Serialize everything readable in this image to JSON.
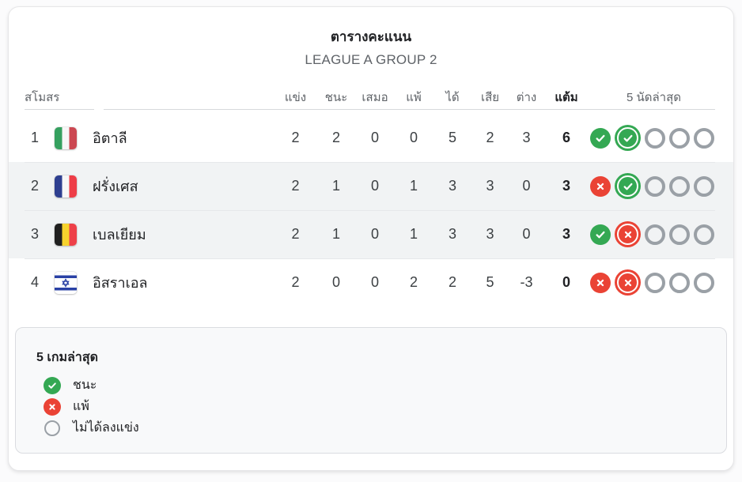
{
  "card": {
    "title": "ตารางคะแนน",
    "subtitle": "LEAGUE A GROUP 2"
  },
  "table": {
    "columns": {
      "club": "สโมสร",
      "played": "แข่ง",
      "won": "ชนะ",
      "drawn": "เสมอ",
      "lost": "แพ้",
      "goals_for": "ได้",
      "goals_against": "เสีย",
      "goal_diff": "ต่าง",
      "points": "แต้ม",
      "form": "5 นัดล่าสุด"
    },
    "rows": [
      {
        "rank": "1",
        "club": "อิตาลี",
        "flag": "italy",
        "played": "2",
        "won": "2",
        "drawn": "0",
        "lost": "0",
        "gf": "5",
        "ga": "2",
        "gd": "3",
        "pts": "6",
        "highlighted": false,
        "form": [
          "win",
          "win-latest",
          "none",
          "none",
          "none"
        ]
      },
      {
        "rank": "2",
        "club": "ฝรั่งเศส",
        "flag": "france",
        "played": "2",
        "won": "1",
        "drawn": "0",
        "lost": "1",
        "gf": "3",
        "ga": "3",
        "gd": "0",
        "pts": "3",
        "highlighted": true,
        "form": [
          "loss",
          "win-latest",
          "none",
          "none",
          "none"
        ]
      },
      {
        "rank": "3",
        "club": "เบลเยียม",
        "flag": "belgium",
        "played": "2",
        "won": "1",
        "drawn": "0",
        "lost": "1",
        "gf": "3",
        "ga": "3",
        "gd": "0",
        "pts": "3",
        "highlighted": true,
        "form": [
          "win",
          "loss-latest",
          "none",
          "none",
          "none"
        ]
      },
      {
        "rank": "4",
        "club": "อิสราเอล",
        "flag": "israel",
        "played": "2",
        "won": "0",
        "drawn": "0",
        "lost": "2",
        "gf": "2",
        "ga": "5",
        "gd": "-3",
        "pts": "0",
        "highlighted": false,
        "form": [
          "loss",
          "loss-latest",
          "none",
          "none",
          "none"
        ]
      }
    ]
  },
  "legend": {
    "title": "5 เกมล่าสุด",
    "items": [
      {
        "type": "win",
        "label": "ชนะ"
      },
      {
        "type": "loss",
        "label": "แพ้"
      },
      {
        "type": "not-played",
        "label": "ไม่ได้ลงแข่ง"
      }
    ]
  },
  "colors": {
    "win_green": "#34a853",
    "loss_red": "#ea4335",
    "neutral_gray": "#9aa0a6",
    "row_highlight": "#f1f3f4"
  }
}
